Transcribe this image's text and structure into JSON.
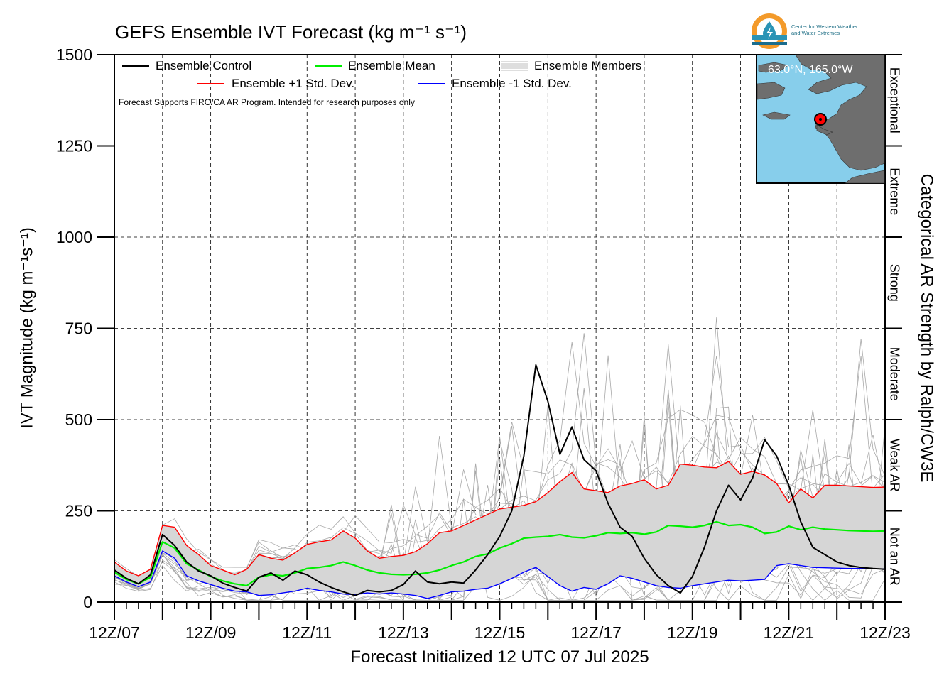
{
  "logo": {
    "line1": "Center for Western Weather",
    "line2": "and Water Extremes"
  },
  "inset": {
    "coord_label": "63.0°N, 165.0°W"
  },
  "colors": {
    "control": "#000000",
    "mean": "#00ee00",
    "plus_std": "#ff0000",
    "minus_std": "#0000ff",
    "members": "#a8a8a8",
    "spread_fill": "#d6d6d6",
    "ocean": "#87ceeb",
    "land": "#6e6e6e"
  },
  "chart_data": {
    "type": "line",
    "title": "GEFS Ensemble IVT Forecast (kg m⁻¹ s⁻¹)",
    "xlabel": "Forecast Initialized 12 UTC 07 Jul 2025",
    "ylabel": "IVT Magnitude (kg m⁻¹s⁻¹)",
    "right_label": "Categorical AR Strength by Ralph/CW3E",
    "note": "Forecast Supports FIRO/CA AR Program. Intended for research purposes only",
    "x_tick_labels": [
      "12Z/07",
      "12Z/09",
      "12Z/11",
      "12Z/13",
      "12Z/15",
      "12Z/17",
      "12Z/19",
      "12Z/21",
      "12Z/23"
    ],
    "xlim": [
      0,
      384
    ],
    "x_units": "forecast hour",
    "ylim": [
      0,
      1500
    ],
    "y_ticks": [
      0,
      250,
      500,
      750,
      1000,
      1250,
      1500
    ],
    "grid": true,
    "legend_placement": "top-left",
    "legend": [
      "Ensemble Control",
      "Ensemble Mean",
      "Ensemble Members",
      "Ensemble +1 Std. Dev.",
      "Ensemble -1 Std. Dev."
    ],
    "categories": [
      {
        "label": "Not an AR",
        "from": 0,
        "to": 250
      },
      {
        "label": "Weak AR",
        "from": 250,
        "to": 500
      },
      {
        "label": "Moderate",
        "from": 500,
        "to": 750
      },
      {
        "label": "Strong",
        "from": 750,
        "to": 1000
      },
      {
        "label": "Extreme",
        "from": 1000,
        "to": 1250
      },
      {
        "label": "Exceptional",
        "from": 1250,
        "to": 1500
      }
    ],
    "x": [
      0,
      6,
      12,
      18,
      24,
      30,
      36,
      42,
      48,
      54,
      60,
      66,
      72,
      78,
      84,
      90,
      96,
      102,
      108,
      114,
      120,
      126,
      132,
      138,
      144,
      150,
      156,
      162,
      168,
      174,
      180,
      186,
      192,
      198,
      204,
      210,
      216,
      222,
      228,
      234,
      240,
      246,
      252,
      258,
      264,
      270,
      276,
      282,
      288,
      294,
      300,
      306,
      312,
      318,
      324,
      330,
      336,
      342,
      348,
      354,
      360,
      366,
      372,
      378,
      384
    ],
    "series": [
      {
        "name": "Ensemble Control",
        "values": [
          88,
          65,
          50,
          75,
          185,
          155,
          110,
          85,
          72,
          52,
          40,
          30,
          68,
          80,
          60,
          85,
          75,
          55,
          40,
          28,
          18,
          32,
          28,
          32,
          48,
          85,
          55,
          50,
          55,
          52,
          88,
          130,
          180,
          250,
          400,
          650,
          550,
          405,
          480,
          390,
          360,
          270,
          205,
          180,
          120,
          75,
          45,
          25,
          70,
          150,
          250,
          320,
          280,
          340,
          445,
          400,
          320,
          220,
          150,
          130,
          110,
          100,
          95,
          92,
          90
        ]
      },
      {
        "name": "Ensemble Mean",
        "values": [
          82,
          62,
          50,
          68,
          165,
          148,
          105,
          88,
          70,
          58,
          50,
          45,
          68,
          75,
          72,
          80,
          92,
          95,
          100,
          110,
          100,
          88,
          80,
          76,
          75,
          76,
          80,
          88,
          100,
          110,
          125,
          132,
          148,
          160,
          175,
          178,
          180,
          185,
          178,
          176,
          182,
          190,
          188,
          190,
          186,
          192,
          210,
          208,
          205,
          210,
          220,
          210,
          212,
          205,
          188,
          192,
          208,
          198,
          205,
          200,
          198,
          196,
          195,
          194,
          195
        ]
      },
      {
        "name": "Ensemble +1 Std. Dev.",
        "values": [
          110,
          85,
          72,
          90,
          210,
          205,
          155,
          130,
          100,
          88,
          75,
          90,
          130,
          120,
          115,
          135,
          158,
          165,
          170,
          195,
          175,
          140,
          120,
          125,
          128,
          138,
          160,
          190,
          195,
          210,
          225,
          240,
          255,
          260,
          265,
          275,
          300,
          330,
          355,
          310,
          305,
          300,
          318,
          325,
          335,
          310,
          320,
          378,
          375,
          370,
          368,
          385,
          350,
          358,
          348,
          325,
          272,
          310,
          285,
          320,
          320,
          318,
          316,
          314,
          315
        ]
      },
      {
        "name": "Ensemble -1 Std. Dev.",
        "values": [
          72,
          55,
          42,
          55,
          140,
          120,
          72,
          58,
          48,
          38,
          30,
          28,
          18,
          20,
          25,
          30,
          38,
          32,
          28,
          22,
          20,
          25,
          22,
          25,
          22,
          18,
          10,
          18,
          28,
          30,
          35,
          38,
          50,
          65,
          82,
          95,
          70,
          45,
          30,
          40,
          35,
          50,
          72,
          65,
          55,
          45,
          40,
          38,
          45,
          50,
          55,
          60,
          58,
          60,
          62,
          100,
          105,
          100,
          95,
          94,
          93,
          92,
          92,
          91,
          91
        ]
      }
    ]
  }
}
